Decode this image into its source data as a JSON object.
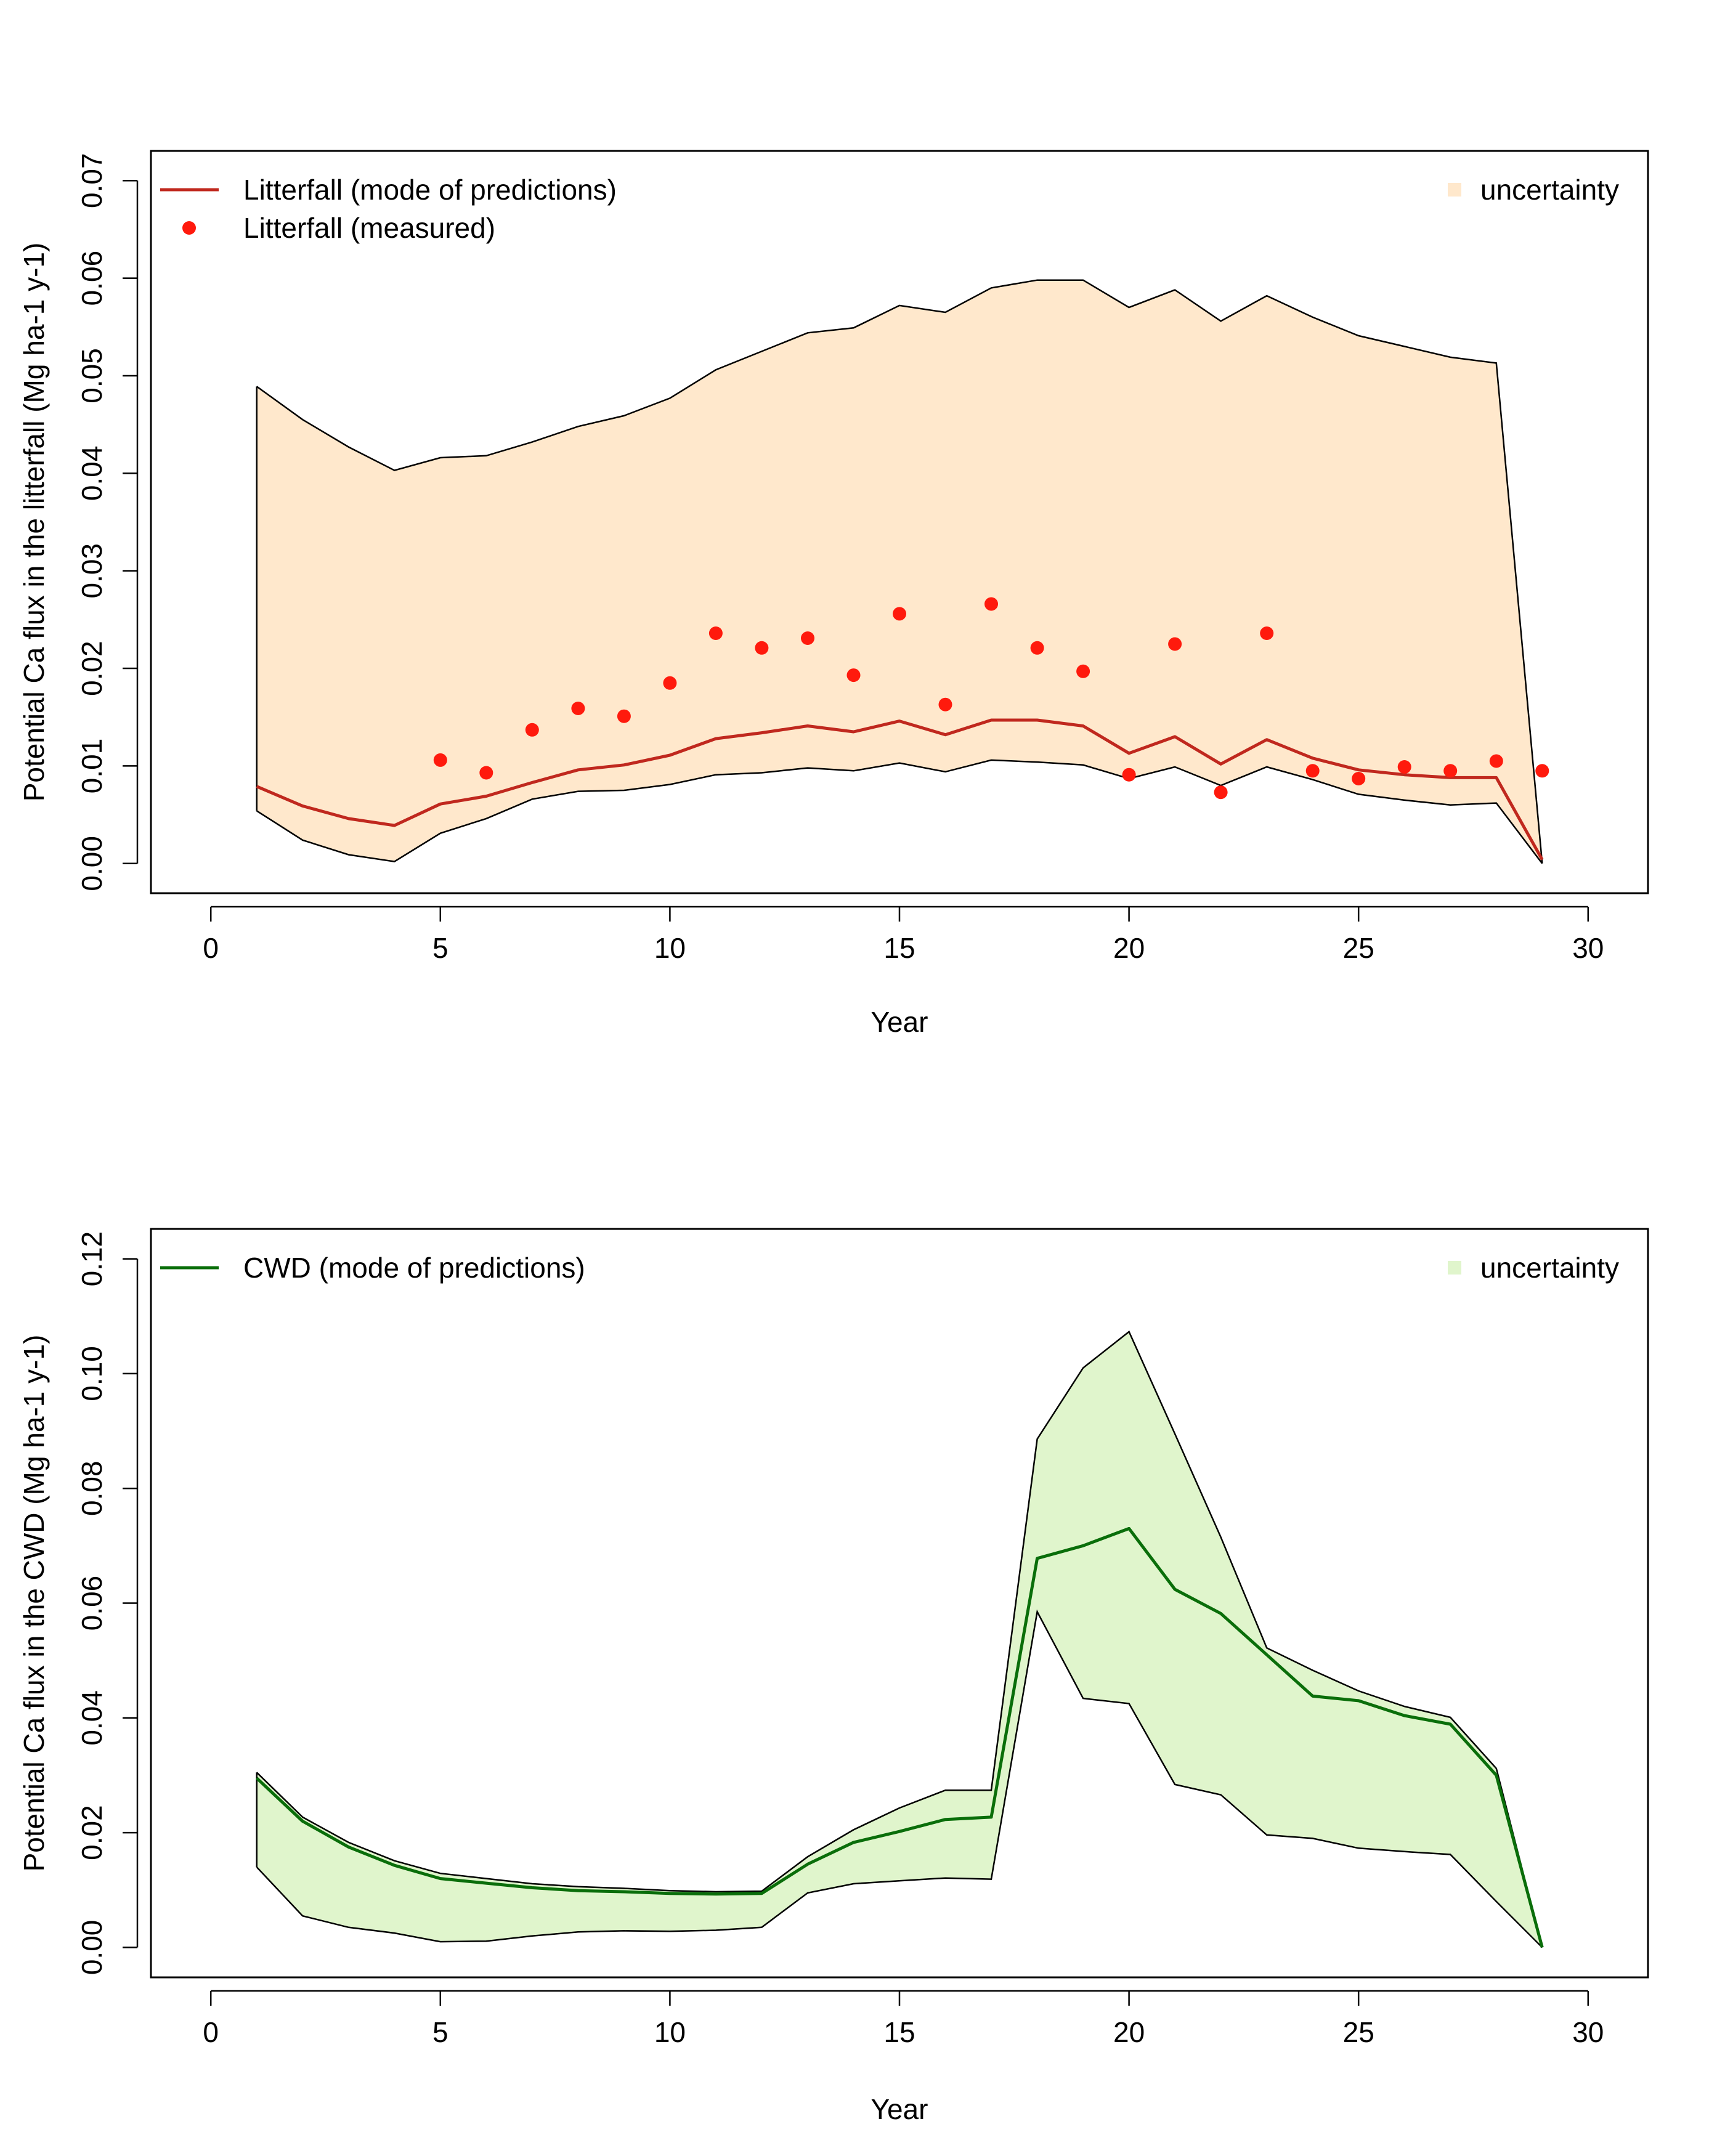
{
  "chart_data": [
    {
      "type": "line",
      "title": "",
      "xlabel": "Year",
      "ylabel": "Potential Ca flux in the litterfall (Mg ha-1 y-1)",
      "xlim": [
        0,
        30
      ],
      "ylim": [
        0,
        0.07
      ],
      "x_ticks": [
        0,
        5,
        10,
        15,
        20,
        25,
        30
      ],
      "x_tick_labels": [
        "0",
        "5",
        "10",
        "15",
        "20",
        "25",
        "30"
      ],
      "y_ticks": [
        0,
        0.01,
        0.02,
        0.03,
        0.04,
        0.05,
        0.06,
        0.07
      ],
      "y_tick_labels": [
        "0.00",
        "0.01",
        "0.02",
        "0.03",
        "0.04",
        "0.05",
        "0.06",
        "0.07"
      ],
      "grid": false,
      "legend": {
        "entries": [
          "Litterfall (mode of predictions)",
          "Litterfall (measured)"
        ],
        "right_entry": "uncertainty",
        "placement": "top"
      },
      "colors": {
        "line": "#c0281e",
        "points": "#ff1a0d",
        "band": "#ffe8cc",
        "band_edge": "#000000"
      },
      "x": [
        1,
        2,
        3,
        4,
        5,
        6,
        7,
        8,
        9,
        10,
        11,
        12,
        13,
        14,
        15,
        16,
        17,
        18,
        19,
        20,
        21,
        22,
        23,
        24,
        25,
        26,
        27,
        28,
        29
      ],
      "series": [
        {
          "name": "Litterfall (mode of predictions)",
          "kind": "line",
          "values": [
            0.0079,
            0.0059,
            0.0046,
            0.0039,
            0.0061,
            0.0069,
            0.0083,
            0.0096,
            0.0101,
            0.0111,
            0.0128,
            0.0134,
            0.0141,
            0.0135,
            0.0146,
            0.0132,
            0.0147,
            0.0147,
            0.0141,
            0.0113,
            0.013,
            0.0102,
            0.0127,
            0.0108,
            0.0096,
            0.0091,
            0.0088,
            0.0088,
            0.0004
          ]
        },
        {
          "name": "uncertainty",
          "kind": "band",
          "upper": [
            0.0489,
            0.0455,
            0.0427,
            0.0403,
            0.0416,
            0.0418,
            0.0432,
            0.0448,
            0.0459,
            0.0477,
            0.0506,
            0.0525,
            0.0544,
            0.0549,
            0.0572,
            0.0565,
            0.059,
            0.0598,
            0.0598,
            0.057,
            0.0588,
            0.0556,
            0.0582,
            0.056,
            0.0541,
            0.053,
            0.0519,
            0.0513,
            0.0
          ],
          "lower": [
            0.0054,
            0.0024,
            0.0009,
            0.0002,
            0.0031,
            0.0046,
            0.0066,
            0.0074,
            0.0075,
            0.0081,
            0.0091,
            0.0093,
            0.0098,
            0.0095,
            0.0103,
            0.0094,
            0.0106,
            0.0104,
            0.0101,
            0.0087,
            0.0099,
            0.008,
            0.0099,
            0.0086,
            0.0071,
            0.0065,
            0.006,
            0.0062,
            0.0
          ]
        },
        {
          "name": "Litterfall (measured)",
          "kind": "points",
          "x": [
            5,
            6,
            7,
            8,
            9,
            10,
            11,
            12,
            13,
            14,
            15,
            16,
            17,
            18,
            19,
            20,
            21,
            22,
            23,
            24,
            25,
            26,
            27,
            28,
            29
          ],
          "values": [
            0.0106,
            0.0093,
            0.0137,
            0.0159,
            0.0151,
            0.0185,
            0.0236,
            0.0221,
            0.0231,
            0.0193,
            0.0256,
            0.0163,
            0.0266,
            0.0221,
            0.0197,
            0.0091,
            0.0225,
            0.0073,
            0.0236,
            0.0095,
            0.0087,
            0.0099,
            0.0095,
            0.0105,
            0.0095
          ]
        }
      ]
    },
    {
      "type": "line",
      "title": "",
      "xlabel": "Year",
      "ylabel": "Potential Ca flux in the CWD (Mg ha-1 y-1)",
      "xlim": [
        0,
        30
      ],
      "ylim": [
        0,
        0.12
      ],
      "x_ticks": [
        0,
        5,
        10,
        15,
        20,
        25,
        30
      ],
      "x_tick_labels": [
        "0",
        "5",
        "10",
        "15",
        "20",
        "25",
        "30"
      ],
      "y_ticks": [
        0,
        0.02,
        0.04,
        0.06,
        0.08,
        0.1,
        0.12
      ],
      "y_tick_labels": [
        "0.00",
        "0.02",
        "0.04",
        "0.06",
        "0.08",
        "0.10",
        "0.12"
      ],
      "grid": false,
      "legend": {
        "entries": [
          "CWD (mode of predictions)"
        ],
        "right_entry": "uncertainty",
        "placement": "top"
      },
      "colors": {
        "line": "#0a6e0a",
        "band": "#e0f5cc",
        "band_edge": "#000000"
      },
      "x": [
        1,
        2,
        3,
        4,
        5,
        6,
        7,
        8,
        9,
        10,
        11,
        12,
        13,
        14,
        15,
        16,
        17,
        18,
        19,
        20,
        21,
        22,
        23,
        24,
        25,
        26,
        27,
        28,
        29
      ],
      "series": [
        {
          "name": "CWD (mode of predictions)",
          "kind": "line",
          "values": [
            0.0295,
            0.022,
            0.0175,
            0.0143,
            0.012,
            0.0112,
            0.0104,
            0.0099,
            0.0097,
            0.0094,
            0.0093,
            0.0094,
            0.0145,
            0.0183,
            0.0202,
            0.0223,
            0.0227,
            0.0678,
            0.07,
            0.073,
            0.0624,
            0.0582,
            0.051,
            0.0438,
            0.043,
            0.0404,
            0.0389,
            0.03,
            0.0
          ]
        },
        {
          "name": "uncertainty",
          "kind": "band",
          "upper": [
            0.0305,
            0.0227,
            0.0183,
            0.0151,
            0.0129,
            0.012,
            0.0111,
            0.0106,
            0.0103,
            0.0099,
            0.0097,
            0.0098,
            0.0158,
            0.0205,
            0.0243,
            0.0274,
            0.0274,
            0.0886,
            0.101,
            0.1073,
            0.0895,
            0.0715,
            0.0522,
            0.0483,
            0.0447,
            0.042,
            0.0401,
            0.0312,
            0.0
          ],
          "lower": [
            0.014,
            0.0055,
            0.0035,
            0.0025,
            0.001,
            0.0011,
            0.002,
            0.0027,
            0.0029,
            0.0028,
            0.003,
            0.0035,
            0.0095,
            0.0111,
            0.0116,
            0.0121,
            0.0119,
            0.0585,
            0.0434,
            0.0425,
            0.0284,
            0.0266,
            0.0196,
            0.019,
            0.0173,
            0.0167,
            0.0162,
            0.008,
            0.0
          ]
        }
      ]
    }
  ]
}
